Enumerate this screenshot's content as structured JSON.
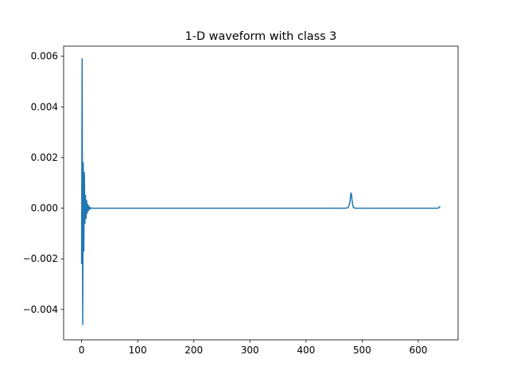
{
  "chart_data": {
    "type": "line",
    "title": "1-D waveform with class 3",
    "xlabel": "",
    "ylabel": "",
    "xlim": [
      -32,
      671
    ],
    "ylim": [
      -0.0052,
      0.0064
    ],
    "x_ticks": [
      0,
      100,
      200,
      300,
      400,
      500,
      600
    ],
    "x_tick_labels": [
      "0",
      "100",
      "200",
      "300",
      "400",
      "500",
      "600"
    ],
    "y_ticks": [
      -0.004,
      -0.002,
      0.0,
      0.002,
      0.004,
      0.006
    ],
    "y_tick_labels": [
      "−0.004",
      "−0.002",
      "0.000",
      "0.002",
      "0.004",
      "0.006"
    ],
    "grid": false,
    "series": [
      {
        "color": "#1f77b4",
        "x": [
          0,
          1,
          2,
          3,
          4,
          5,
          6,
          7,
          8,
          9,
          10,
          11,
          12,
          13,
          14,
          15,
          16,
          18,
          20,
          25,
          40,
          100,
          200,
          300,
          400,
          470,
          475,
          478,
          480,
          481,
          482,
          484,
          487,
          490,
          500,
          600,
          630,
          635,
          637,
          638,
          639
        ],
        "y": [
          -0.0022,
          0.0059,
          -0.0046,
          0.0018,
          -0.0017,
          0.0014,
          -0.0006,
          0.0005,
          -0.0004,
          0.0003,
          -0.0002,
          0.00015,
          -0.0001,
          8e-05,
          -5e-05,
          3e-05,
          -2e-05,
          1e-05,
          0.0,
          0.0,
          0.0,
          0.0,
          0.0,
          0.0,
          0.0,
          0.0,
          2e-05,
          0.0002,
          0.0006,
          0.00055,
          0.0003,
          5e-05,
          0.0,
          0.0,
          0.0,
          0.0,
          0.0,
          0.0,
          2e-05,
          5e-05,
          8e-05
        ]
      }
    ]
  }
}
